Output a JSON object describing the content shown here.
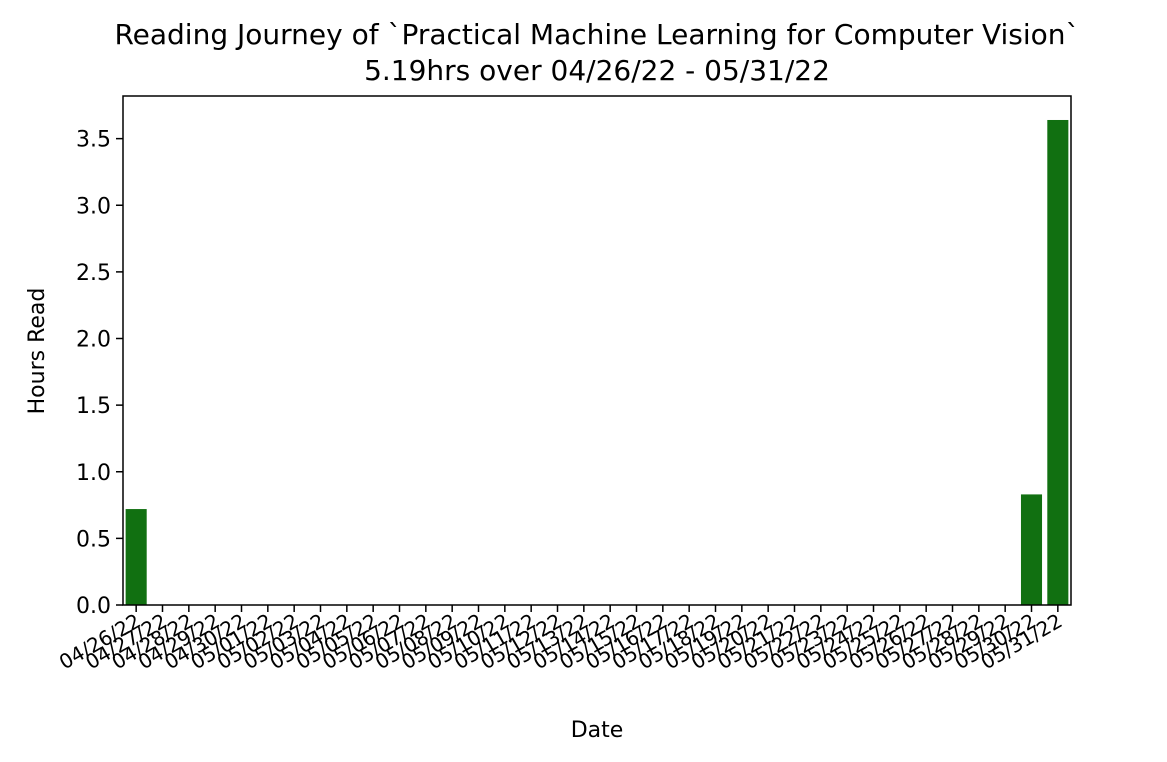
{
  "chart_data": {
    "type": "bar",
    "title": "Reading Journey of `Practical Machine Learning for Computer Vision`",
    "subtitle": "5.19hrs over 04/26/22 - 05/31/22",
    "xlabel": "Date",
    "ylabel": "Hours Read",
    "ylim": [
      0,
      3.82
    ],
    "yticks": [
      "0.0",
      "0.5",
      "1.0",
      "1.5",
      "2.0",
      "2.5",
      "3.0",
      "3.5"
    ],
    "categories": [
      "04/26/22",
      "04/27/22",
      "04/28/22",
      "04/29/22",
      "04/30/22",
      "05/01/22",
      "05/02/22",
      "05/03/22",
      "05/04/22",
      "05/05/22",
      "05/06/22",
      "05/07/22",
      "05/08/22",
      "05/09/22",
      "05/10/22",
      "05/11/22",
      "05/12/22",
      "05/13/22",
      "05/14/22",
      "05/15/22",
      "05/16/22",
      "05/17/22",
      "05/18/22",
      "05/19/22",
      "05/20/22",
      "05/21/22",
      "05/22/22",
      "05/23/22",
      "05/24/22",
      "05/25/22",
      "05/26/22",
      "05/27/22",
      "05/28/22",
      "05/29/22",
      "05/30/22",
      "05/31/22"
    ],
    "values": [
      0.72,
      0,
      0,
      0,
      0,
      0,
      0,
      0,
      0,
      0,
      0,
      0,
      0,
      0,
      0,
      0,
      0,
      0,
      0,
      0,
      0,
      0,
      0,
      0,
      0,
      0,
      0,
      0,
      0,
      0,
      0,
      0,
      0,
      0,
      0.83,
      3.64
    ],
    "bar_color": "#117011",
    "grid": false,
    "legend": "none"
  }
}
